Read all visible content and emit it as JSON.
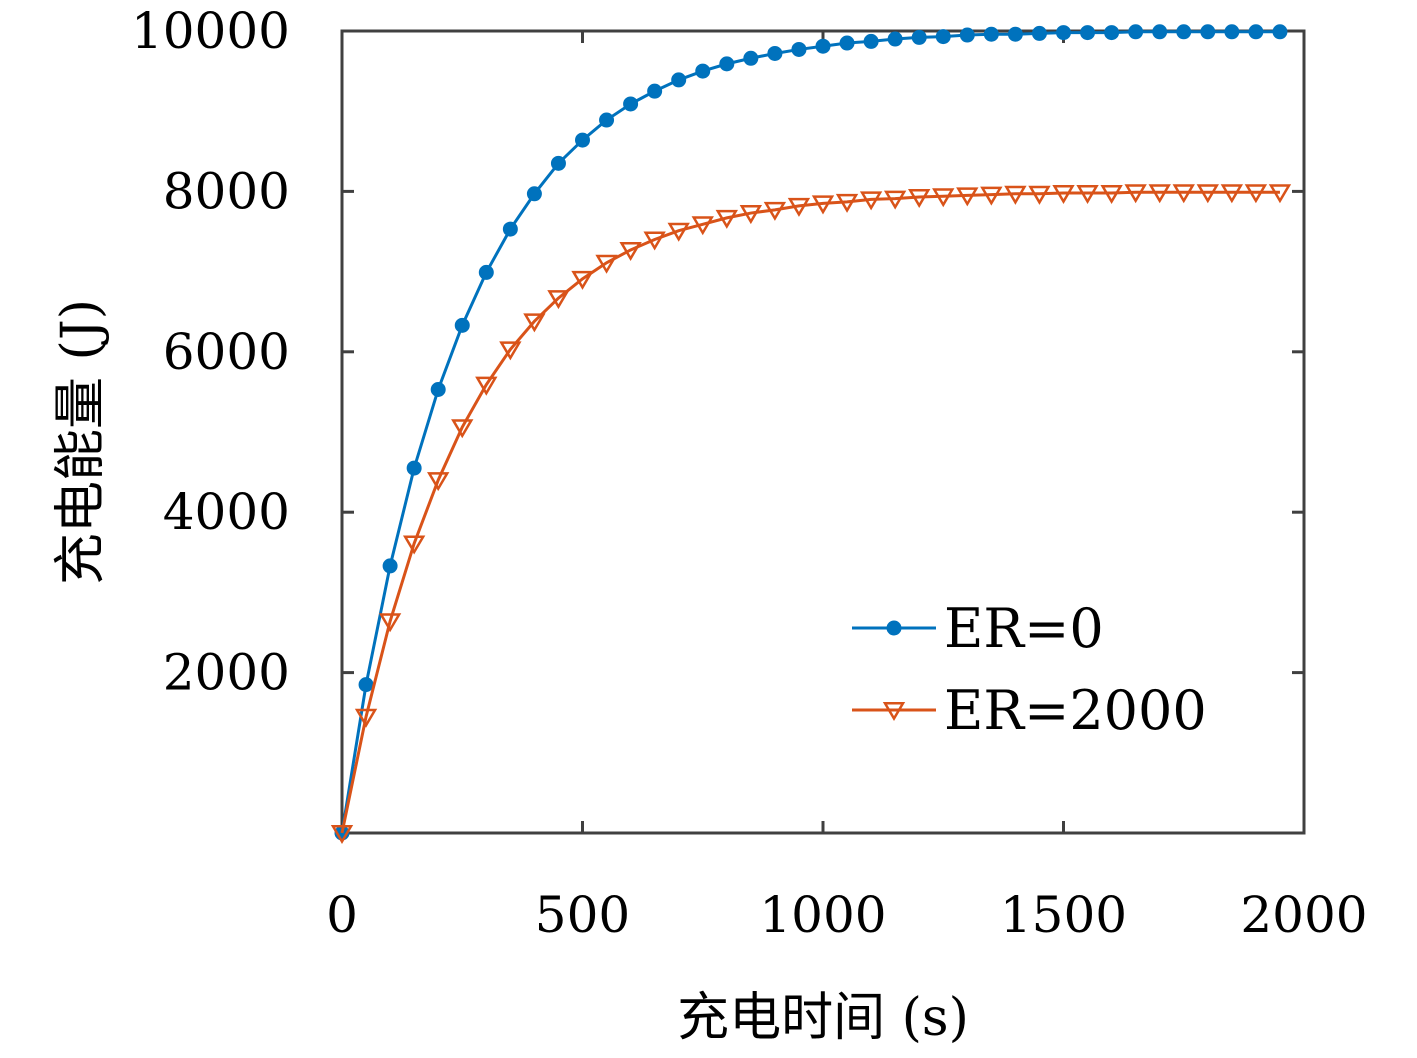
{
  "chart_data": {
    "type": "line",
    "xlabel": "充电时间 (s)",
    "ylabel": "充电能量 (J)",
    "xlim": [
      0,
      2000
    ],
    "ylim": [
      0,
      10000
    ],
    "x_ticks": [
      "0",
      "500",
      "1000",
      "1500",
      "2000"
    ],
    "y_ticks": [
      "2000",
      "4000",
      "6000",
      "8000",
      "10000"
    ],
    "grid": false,
    "legend_position": "bottom-right",
    "series": [
      {
        "name": "ER=0",
        "color": "#0072BD",
        "marker": "dot",
        "x": [
          0,
          50,
          100,
          150,
          200,
          250,
          300,
          350,
          400,
          450,
          500,
          550,
          600,
          650,
          700,
          750,
          800,
          850,
          900,
          950,
          1000,
          1050,
          1100,
          1150,
          1200,
          1250,
          1300,
          1350,
          1400,
          1450,
          1500,
          1550,
          1600,
          1650,
          1700,
          1750,
          1800,
          1850,
          1900,
          1950
        ],
        "y": [
          0,
          1850,
          3330,
          4550,
          5530,
          6330,
          6990,
          7530,
          7970,
          8350,
          8640,
          8890,
          9090,
          9250,
          9390,
          9500,
          9590,
          9660,
          9720,
          9770,
          9810,
          9850,
          9870,
          9900,
          9920,
          9930,
          9950,
          9960,
          9960,
          9970,
          9980,
          9980,
          9980,
          9990,
          9990,
          9990,
          9990,
          9990,
          9990,
          9990
        ]
      },
      {
        "name": "ER=2000",
        "color": "#D95319",
        "marker": "triangle-down",
        "x": [
          0,
          50,
          100,
          150,
          200,
          250,
          300,
          350,
          400,
          450,
          500,
          550,
          600,
          650,
          700,
          750,
          800,
          850,
          900,
          950,
          1000,
          1050,
          1100,
          1150,
          1200,
          1250,
          1300,
          1350,
          1400,
          1450,
          1500,
          1550,
          1600,
          1650,
          1700,
          1750,
          1800,
          1850,
          1900,
          1950
        ],
        "y": [
          0,
          1450,
          2640,
          3610,
          4400,
          5060,
          5590,
          6030,
          6380,
          6670,
          6910,
          7110,
          7270,
          7400,
          7510,
          7590,
          7670,
          7730,
          7770,
          7820,
          7850,
          7870,
          7900,
          7910,
          7930,
          7940,
          7950,
          7960,
          7970,
          7970,
          7980,
          7980,
          7980,
          7990,
          7990,
          7990,
          7990,
          7990,
          7990,
          7990
        ]
      }
    ]
  }
}
